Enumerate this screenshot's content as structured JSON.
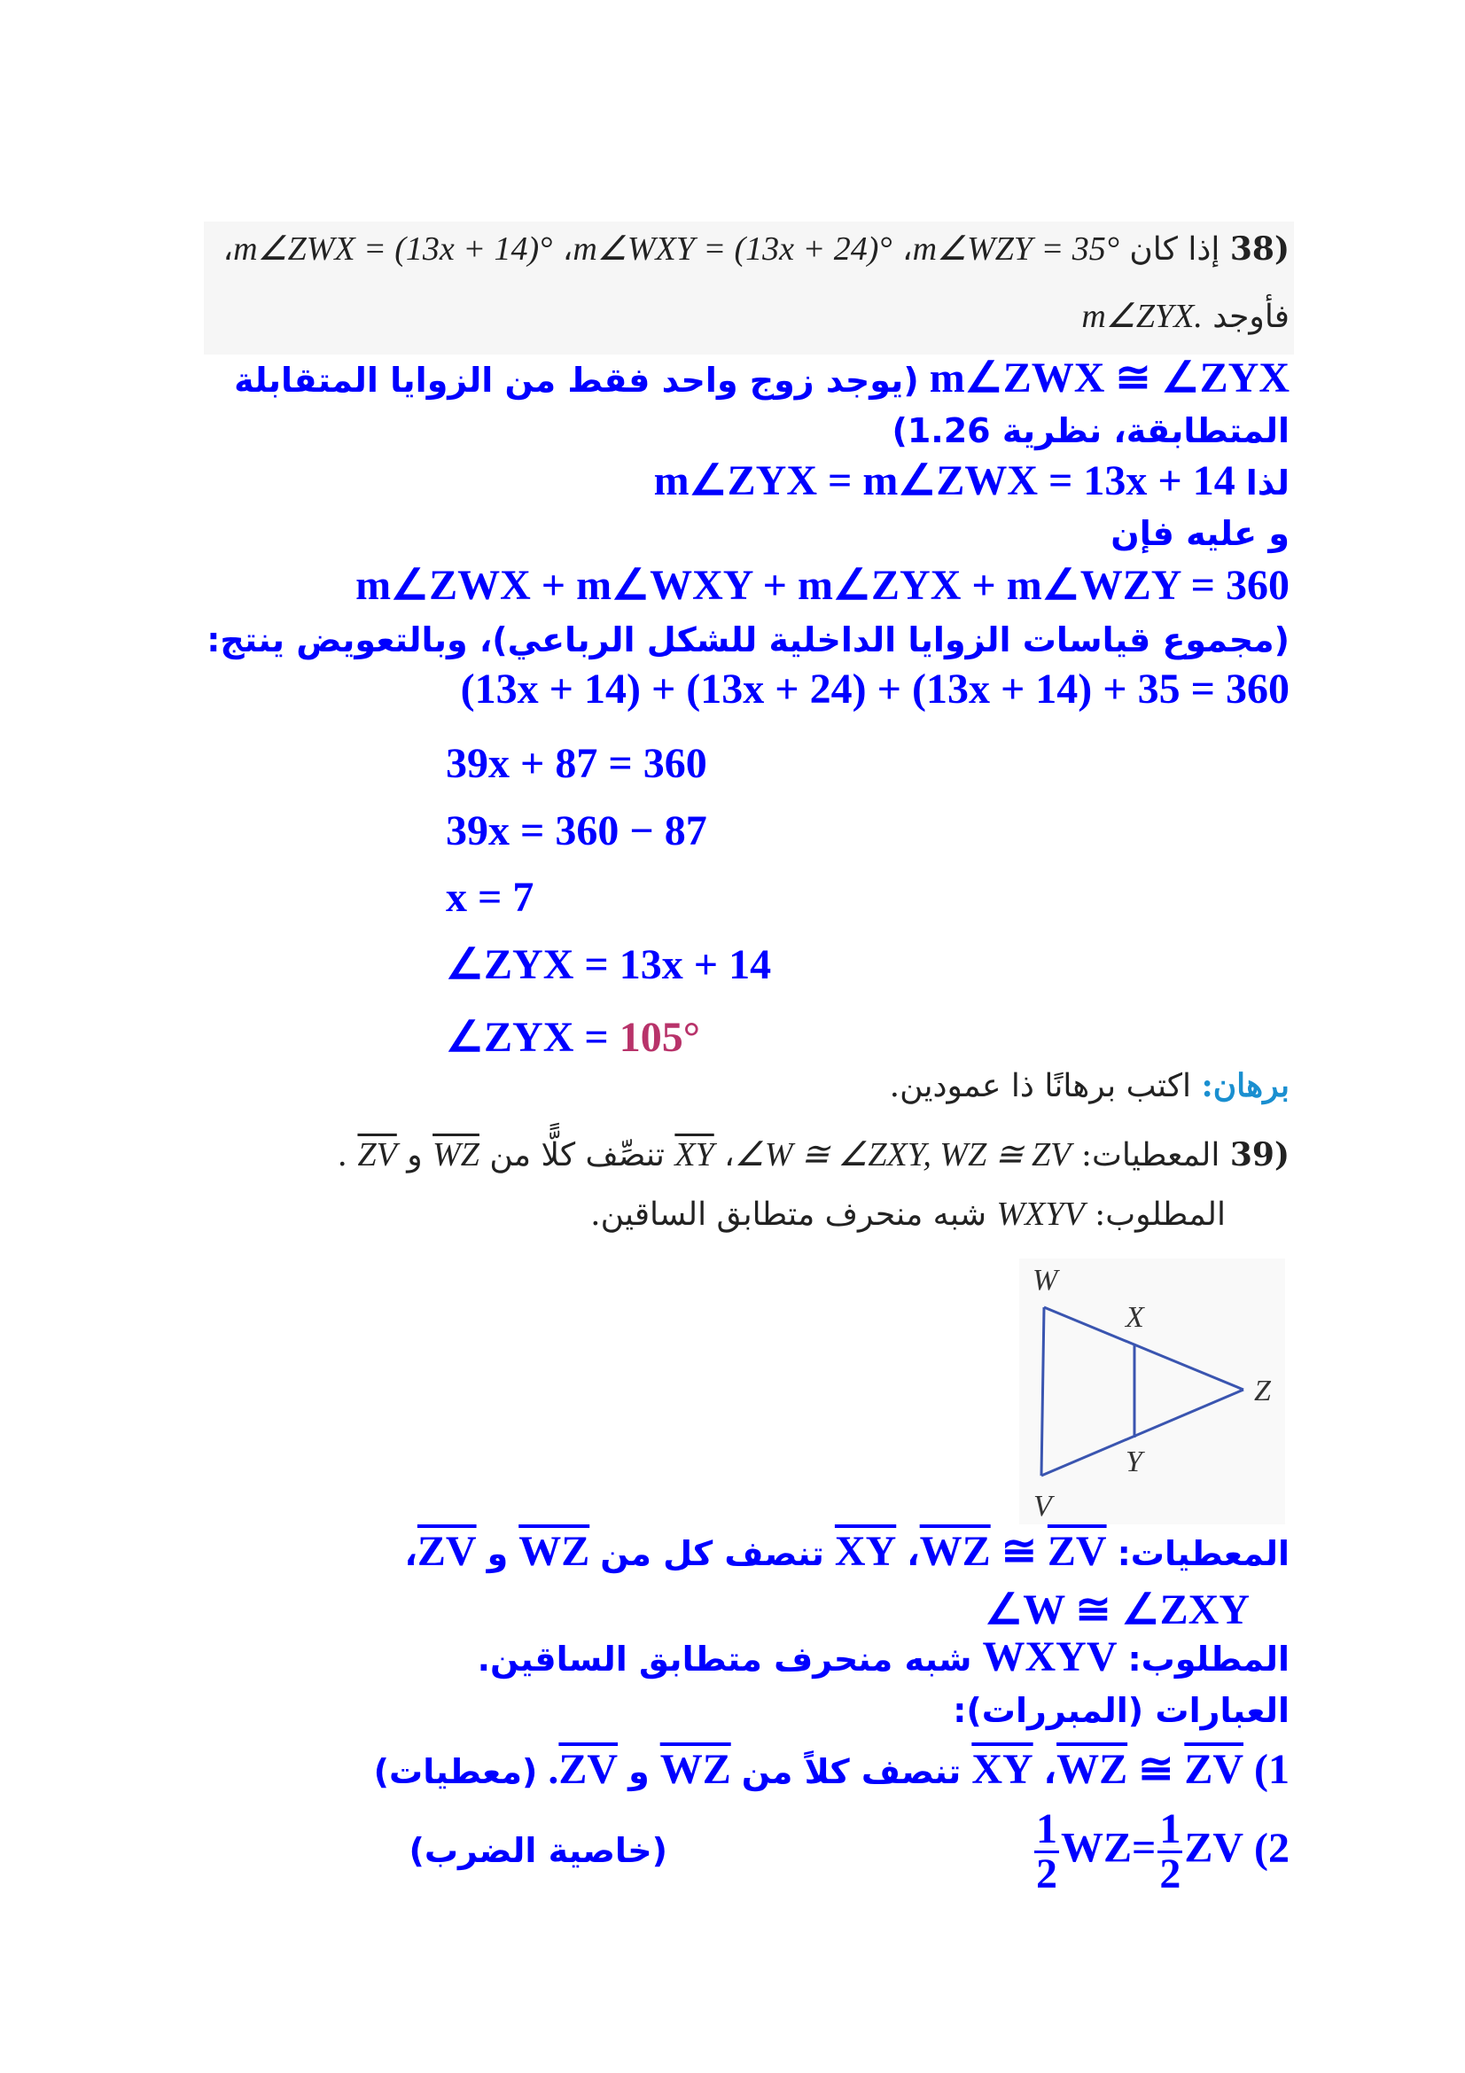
{
  "problem38": {
    "number": "(38",
    "if_ar": "إذا كان",
    "expr1": "m∠WZY = 35°",
    "expr2": "m∠WXY = (13x + 24)°",
    "expr3": "m∠ZWX = (13x + 14)°",
    "sep": "،",
    "find_ar": "فأوجد",
    "find_expr": "m∠ZYX."
  },
  "solution": {
    "l1_math": "m∠ZWX ≅ ∠ZYX",
    "l1_ar": "(يوجد زوج واحد فقط من الزوايا المتقابلة",
    "l2_ar": "المتطابقة، نظرية 1.26)",
    "l3_ar": "لذا",
    "l3_math": "m∠ZYX = m∠ZWX = 13x + 14",
    "l4_ar": "و عليه فإن",
    "l5_math": "m∠ZWX + m∠WXY + m∠ZYX + m∠WZY = 360",
    "l6_ar": "(مجموع قياسات الزوايا الداخلية للشكل الرباعي)، وبالتعويض ينتج:",
    "l7_math": "(13x + 14) + (13x + 24) + (13x + 14) + 35 = 360",
    "l8_math": "39x + 87 = 360",
    "l9_math": "39x = 360 − 87",
    "l10_math": "x = 7",
    "l11_math": "∠ZYX = 13x + 14",
    "l12_math": "∠ZYX = ",
    "l12_answer": "105°"
  },
  "proof_header": {
    "label": "برهان:",
    "text": "اكتب برهانًا ذا عمودين."
  },
  "problem39": {
    "number": "(39",
    "given_label": "المعطيات:",
    "given_expr": "∠W ≅ ∠ZXY, WZ ≅ ZV",
    "sep": "،",
    "xy": "XY",
    "bisects_ar": "تنصِّف كلًّا من",
    "wz": "WZ",
    "and_ar": "و",
    "zv": "ZV",
    "end": ".",
    "required_label": "المطلوب:",
    "required_expr": "WXYV",
    "required_ar": "شبه منحرف متطابق الساقين."
  },
  "diagram": {
    "labels": {
      "w": "W",
      "x": "X",
      "z": "Z",
      "y": "Y",
      "v": "V"
    },
    "stroke_color": "#3a55b0"
  },
  "answer39": {
    "given_label": "المعطيات:",
    "zv": "ZV",
    "cong": "≅",
    "wz": "WZ",
    "comma": "،",
    "xy": "XY",
    "bisects_ar": "تنصف كل من",
    "and_ar": "و",
    "angle_expr": "∠W ≅ ∠ZXY",
    "required_label": "المطلوب:",
    "required_expr": "WXYV",
    "required_ar": "شبه منحرف متطابق الساقين.",
    "statements_label": "العبارات (المبررات):",
    "s1_num": "(1",
    "s1_bisects_ar": "تنصف كلاً من",
    "s1_end": ".",
    "s1_reason": "(معطيات)",
    "s2_num": "(2",
    "s2_one": "1",
    "s2_two": "2",
    "s2_eq": "=",
    "s2_reason": "(خاصية الضرب)"
  },
  "colors": {
    "solution": "#0000ff",
    "answer": "#b8336a",
    "proof_label": "#1a8fd0"
  }
}
